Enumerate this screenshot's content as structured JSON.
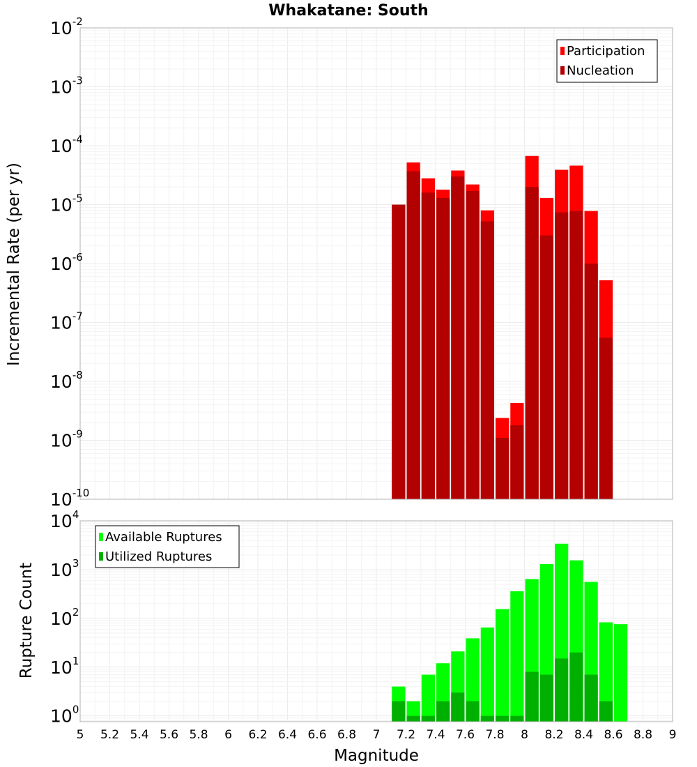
{
  "chart_data": [
    {
      "type": "bar",
      "title": "Whakatane: South",
      "xlabel": "Magnitude",
      "ylabel": "Incremental Rate (per yr)",
      "yscale": "log",
      "xlim": [
        5,
        9
      ],
      "ylim": [
        1e-10,
        0.01
      ],
      "y_tick_exponents": [
        -10,
        -9,
        -8,
        -7,
        -6,
        -5,
        -4,
        -3,
        -2
      ],
      "grid": true,
      "legend_position": "top-right",
      "bin_width": 0.1,
      "x": [
        7.15,
        7.25,
        7.35,
        7.45,
        7.55,
        7.65,
        7.75,
        7.85,
        7.95,
        8.05,
        8.15,
        8.25,
        8.35,
        8.45,
        8.55
      ],
      "series": [
        {
          "name": "Participation",
          "color": "#ff0000",
          "values": [
            1e-05,
            5.2e-05,
            2.8e-05,
            1.8e-05,
            3.8e-05,
            2.2e-05,
            8e-06,
            2.4e-09,
            4.3e-09,
            6.7e-05,
            1.3e-05,
            3.9e-05,
            4.6e-05,
            7.8e-06,
            5.2e-07
          ]
        },
        {
          "name": "Nucleation",
          "color": "#b30000",
          "values": [
            1e-05,
            3.7e-05,
            1.6e-05,
            1.3e-05,
            3e-05,
            1.7e-05,
            5.2e-06,
            1.1e-09,
            1.8e-09,
            2e-05,
            3e-06,
            7.4e-06,
            7.8e-06,
            1e-06,
            5.5e-08
          ]
        }
      ]
    },
    {
      "type": "bar",
      "xlabel": "Magnitude",
      "ylabel": "Rupture Count",
      "yscale": "log",
      "xlim": [
        5,
        9
      ],
      "ylim": [
        0.76,
        10000
      ],
      "y_tick_exponents": [
        0,
        1,
        2,
        3,
        4
      ],
      "x_ticks": [
        "5",
        "5.2",
        "5.4",
        "5.6",
        "5.8",
        "6",
        "6.2",
        "6.4",
        "6.6",
        "6.8",
        "7",
        "7.2",
        "7.4",
        "7.6",
        "7.8",
        "8",
        "8.2",
        "8.4",
        "8.6",
        "8.8",
        "9"
      ],
      "grid": true,
      "legend_position": "top-left",
      "bin_width": 0.1,
      "x": [
        7.15,
        7.25,
        7.35,
        7.45,
        7.55,
        7.65,
        7.75,
        7.85,
        7.95,
        8.05,
        8.15,
        8.25,
        8.35,
        8.45,
        8.55,
        8.65
      ],
      "series": [
        {
          "name": "Available Ruptures",
          "color": "#00ff00",
          "values": [
            4,
            2,
            7,
            12,
            21,
            39,
            65,
            155,
            360,
            640,
            1300,
            3400,
            1550,
            560,
            83,
            76
          ]
        },
        {
          "name": "Utilized Ruptures",
          "color": "#00b000",
          "values": [
            2,
            1,
            1,
            2,
            3,
            2,
            1,
            1,
            1,
            8,
            7,
            15,
            20,
            7,
            2,
            0
          ]
        }
      ]
    }
  ]
}
